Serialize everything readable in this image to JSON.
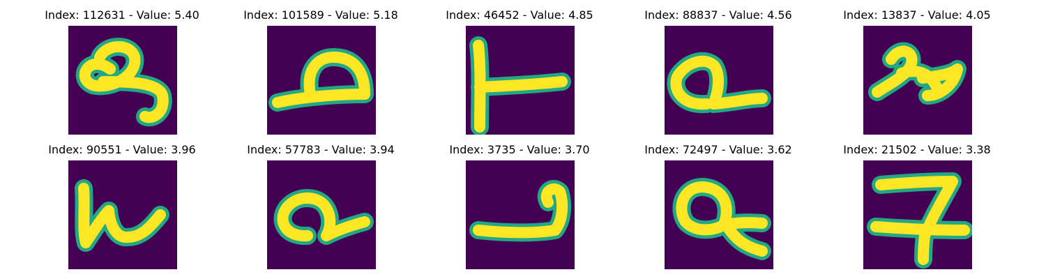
{
  "colors": {
    "background": "#440154",
    "mid": "#22a884",
    "high": "#fde725"
  },
  "panels": [
    {
      "title": "Index: 112631 - Value: 5.40",
      "glyph": "scribble-9"
    },
    {
      "title": "Index: 101589 - Value: 5.18",
      "glyph": "loop-a"
    },
    {
      "title": "Index: 46452 - Value: 4.85",
      "glyph": "t-shape"
    },
    {
      "title": "Index: 88837 - Value: 4.56",
      "glyph": "loop-a-small"
    },
    {
      "title": "Index: 13837 - Value: 4.05",
      "glyph": "scribble-2"
    },
    {
      "title": "Index: 90551 - Value: 3.96",
      "glyph": "scribble-k"
    },
    {
      "title": "Index: 57783 - Value: 3.94",
      "glyph": "loop-a-tail"
    },
    {
      "title": "Index: 3735 - Value: 3.70",
      "glyph": "hook-j"
    },
    {
      "title": "Index: 72497 - Value: 3.62",
      "glyph": "loop-q"
    },
    {
      "title": "Index: 21502 - Value: 3.38",
      "glyph": "seven-crossed"
    }
  ]
}
